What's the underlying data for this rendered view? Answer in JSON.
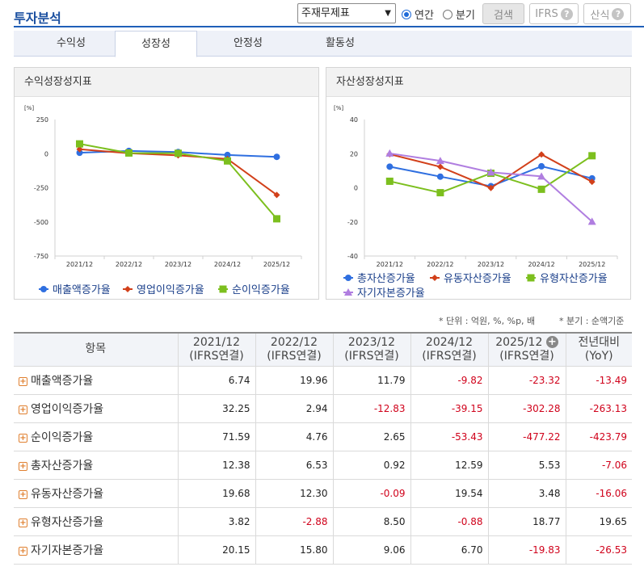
{
  "header": {
    "title": "투자분석",
    "report_select": "주재무제표",
    "radio_annual": "연간",
    "radio_quarter": "분기",
    "search_btn": "검색",
    "ifrs_btn": "IFRS",
    "formula_btn": "산식",
    "help_glyph": "?"
  },
  "tabs": [
    "수익성",
    "성장성",
    "안정성",
    "활동성"
  ],
  "active_tab": "성장성",
  "left_chart": {
    "title": "수익성장성지표",
    "unit": "[%]",
    "y_ticks": [
      "250",
      "0",
      "-250",
      "-500",
      "-750"
    ],
    "legend": [
      "매출액증가율",
      "영업이익증가율",
      "순이익증가율"
    ]
  },
  "right_chart": {
    "title": "자산성장성지표",
    "unit": "[%]",
    "y_ticks": [
      "40",
      "20",
      "0",
      "-20",
      "-40"
    ],
    "legend": [
      "총자산증가율",
      "유동자산증가율",
      "유형자산증가율",
      "자기자본증가율"
    ]
  },
  "chart_data": [
    {
      "type": "line",
      "title": "수익성장성지표",
      "categories": [
        "2021/12",
        "2022/12",
        "2023/12",
        "2024/12",
        "2025/12"
      ],
      "ylim": [
        -750,
        250
      ],
      "ylabel": "[%]",
      "grid": false,
      "legend_position": "bottom",
      "series": [
        {
          "name": "매출액증가율",
          "color": "#2f6fe0",
          "marker": "circle",
          "values": [
            6.74,
            19.96,
            11.79,
            -9.82,
            -23.32
          ]
        },
        {
          "name": "영업이익증가율",
          "color": "#d2401a",
          "marker": "diamond",
          "values": [
            32.25,
            2.94,
            -12.83,
            -39.15,
            -302.28
          ]
        },
        {
          "name": "순이익증가율",
          "color": "#7cbf1e",
          "marker": "square",
          "values": [
            71.59,
            4.76,
            2.65,
            -53.43,
            -477.22
          ]
        }
      ]
    },
    {
      "type": "line",
      "title": "자산성장성지표",
      "categories": [
        "2021/12",
        "2022/12",
        "2023/12",
        "2024/12",
        "2025/12"
      ],
      "ylim": [
        -40,
        40
      ],
      "ylabel": "[%]",
      "grid": false,
      "legend_position": "bottom",
      "series": [
        {
          "name": "총자산증가율",
          "color": "#2f6fe0",
          "marker": "circle",
          "values": [
            12.38,
            6.53,
            0.92,
            12.59,
            5.53
          ]
        },
        {
          "name": "유동자산증가율",
          "color": "#d2401a",
          "marker": "diamond",
          "values": [
            19.68,
            12.3,
            -0.09,
            19.54,
            3.48
          ]
        },
        {
          "name": "유형자산증가율",
          "color": "#7cbf1e",
          "marker": "square",
          "values": [
            3.82,
            -2.88,
            8.5,
            -0.88,
            18.77
          ]
        },
        {
          "name": "자기자본증가율",
          "color": "#b07ee0",
          "marker": "triangle",
          "values": [
            20.15,
            15.8,
            9.06,
            6.7,
            -19.83
          ]
        }
      ]
    }
  ],
  "notes": {
    "unit": "* 단위 : 억원, %, %p, 배",
    "quarter": "* 분기 : 순액기준"
  },
  "table": {
    "item_header": "항목",
    "columns": [
      {
        "line1": "2021/12",
        "line2": "(IFRS연결)"
      },
      {
        "line1": "2022/12",
        "line2": "(IFRS연결)"
      },
      {
        "line1": "2023/12",
        "line2": "(IFRS연결)"
      },
      {
        "line1": "2024/12",
        "line2": "(IFRS연결)"
      },
      {
        "line1": "2025/12",
        "line2": "(IFRS연결)"
      },
      {
        "line1": "전년대비",
        "line2": "(YoY)"
      }
    ],
    "plus_glyph": "+",
    "rows": [
      {
        "name": "매출액증가율",
        "values": [
          "6.74",
          "19.96",
          "11.79",
          "-9.82",
          "-23.32",
          "-13.49"
        ]
      },
      {
        "name": "영업이익증가율",
        "values": [
          "32.25",
          "2.94",
          "-12.83",
          "-39.15",
          "-302.28",
          "-263.13"
        ]
      },
      {
        "name": "순이익증가율",
        "values": [
          "71.59",
          "4.76",
          "2.65",
          "-53.43",
          "-477.22",
          "-423.79"
        ]
      },
      {
        "name": "총자산증가율",
        "values": [
          "12.38",
          "6.53",
          "0.92",
          "12.59",
          "5.53",
          "-7.06"
        ]
      },
      {
        "name": "유동자산증가율",
        "values": [
          "19.68",
          "12.30",
          "-0.09",
          "19.54",
          "3.48",
          "-16.06"
        ]
      },
      {
        "name": "유형자산증가율",
        "values": [
          "3.82",
          "-2.88",
          "8.50",
          "-0.88",
          "18.77",
          "19.65"
        ]
      },
      {
        "name": "자기자본증가율",
        "values": [
          "20.15",
          "15.80",
          "9.06",
          "6.70",
          "-19.83",
          "-26.53"
        ]
      }
    ]
  }
}
